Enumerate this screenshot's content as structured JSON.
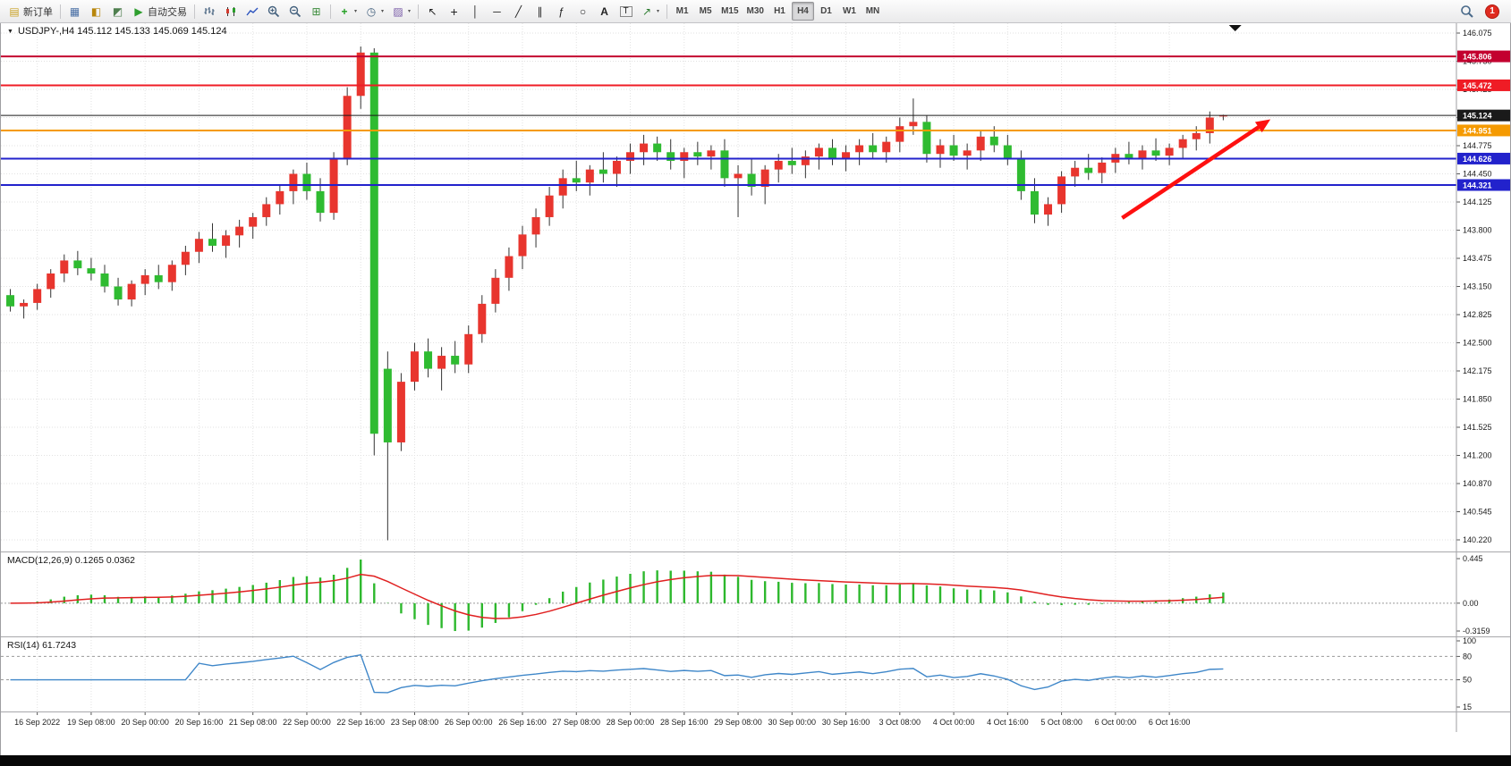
{
  "toolbar": {
    "new_order_label": "新订单",
    "autotrading_label": "自动交易",
    "timeframes": [
      "M1",
      "M5",
      "M15",
      "M30",
      "H1",
      "H4",
      "D1",
      "W1",
      "MN"
    ],
    "active_timeframe": "H4",
    "notification_count": "1"
  },
  "icons": {
    "collapse": "▼",
    "new_order": "▤",
    "charts": "▦",
    "market_watch": "◧",
    "navigator": "◩",
    "autotrading": "▶",
    "tile_windows": "⊞",
    "indicators": "+",
    "periods": "◷",
    "templates": "▨",
    "cursor": "↖",
    "crosshair": "+",
    "vertical_line": "│",
    "horizontal_line": "─",
    "trendline": "╱",
    "channel": "∥",
    "fibonacci": "ƒ",
    "shapes": "○",
    "text": "A",
    "text_label": "T",
    "arrows": "↗",
    "caret": "▾"
  },
  "panes": {
    "main_title": "USDJPY-,H4 145.112 145.133 145.069 145.124",
    "macd_label": "MACD(12,26,9) 0.1265 0.0362",
    "rsi_label": "RSI(14) 61.7243"
  },
  "hlines": [
    {
      "price": 145.806,
      "label": "145.806",
      "color": "#c3002f",
      "current": false
    },
    {
      "price": 145.472,
      "label": "145.472",
      "color": "#ef1c25",
      "current": false
    },
    {
      "price": 145.124,
      "label": "145.124",
      "color": "#1a1a1a",
      "current": true
    },
    {
      "price": 144.951,
      "label": "144.951",
      "color": "#f59a00",
      "current": false
    },
    {
      "price": 144.626,
      "label": "144.626",
      "color": "#2222cc",
      "current": false
    },
    {
      "price": 144.321,
      "label": "144.321",
      "color": "#2222cc",
      "current": false
    }
  ],
  "annotations": [
    {
      "type": "arrow",
      "from": {
        "index": 82.5,
        "price": 143.94
      },
      "to": {
        "index": 93.5,
        "price": 145.08
      },
      "color": "#fe1010",
      "width": 4.5
    }
  ],
  "chart_data": [
    {
      "type": "candlestick",
      "symbol": "USDJPY-",
      "period": "H4",
      "ohlc_display": {
        "open": "145.112",
        "high": "145.133",
        "low": "145.069",
        "close": "145.124"
      },
      "up_color": "#e8352e",
      "down_color": "#2fbb31",
      "wick_color": "#333333",
      "ylim": [
        140.22,
        146.075
      ],
      "y_tick_labels": [
        "146.075",
        "145.750",
        "145.425",
        "145.100",
        "144.775",
        "144.450",
        "144.125",
        "143.800",
        "143.475",
        "143.150",
        "142.825",
        "142.500",
        "142.175",
        "141.850",
        "141.525",
        "141.200",
        "140.870",
        "140.545",
        "140.220"
      ],
      "x_labels": [
        "16 Sep 2022",
        "19 Sep 08:00",
        "20 Sep 00:00",
        "20 Sep 16:00",
        "21 Sep 08:00",
        "22 Sep 00:00",
        "22 Sep 16:00",
        "23 Sep 08:00",
        "26 Sep 00:00",
        "26 Sep 16:00",
        "27 Sep 08:00",
        "28 Sep 00:00",
        "28 Sep 16:00",
        "29 Sep 08:00",
        "30 Sep 00:00",
        "30 Sep 16:00",
        "3 Oct 08:00",
        "4 Oct 00:00",
        "4 Oct 16:00",
        "5 Oct 08:00",
        "6 Oct 00:00",
        "6 Oct 16:00"
      ],
      "label_first": 2,
      "label_every": 4,
      "candles": [
        [
          143.05,
          143.12,
          142.86,
          142.92
        ],
        [
          142.92,
          143.0,
          142.78,
          142.96
        ],
        [
          142.96,
          143.18,
          142.88,
          143.12
        ],
        [
          143.12,
          143.35,
          143.02,
          143.3
        ],
        [
          143.3,
          143.52,
          143.2,
          143.45
        ],
        [
          143.45,
          143.56,
          143.28,
          143.36
        ],
        [
          143.36,
          143.48,
          143.22,
          143.3
        ],
        [
          143.3,
          143.4,
          143.08,
          143.15
        ],
        [
          143.15,
          143.25,
          142.93,
          143.0
        ],
        [
          143.0,
          143.22,
          142.92,
          143.18
        ],
        [
          143.18,
          143.35,
          143.05,
          143.28
        ],
        [
          143.28,
          143.4,
          143.12,
          143.2
        ],
        [
          143.2,
          143.45,
          143.1,
          143.4
        ],
        [
          143.4,
          143.62,
          143.28,
          143.55
        ],
        [
          143.55,
          143.78,
          143.42,
          143.7
        ],
        [
          143.7,
          143.88,
          143.55,
          143.62
        ],
        [
          143.62,
          143.8,
          143.48,
          143.74
        ],
        [
          143.74,
          143.92,
          143.6,
          143.84
        ],
        [
          143.84,
          144.0,
          143.7,
          143.95
        ],
        [
          143.95,
          144.18,
          143.85,
          144.1
        ],
        [
          144.1,
          144.32,
          143.98,
          144.25
        ],
        [
          144.25,
          144.5,
          144.1,
          144.45
        ],
        [
          144.45,
          144.58,
          144.15,
          144.25
        ],
        [
          144.25,
          144.4,
          143.9,
          144.0
        ],
        [
          144.0,
          144.7,
          143.92,
          144.62
        ],
        [
          144.62,
          145.45,
          144.55,
          145.35
        ],
        [
          145.35,
          145.92,
          145.2,
          145.85
        ],
        [
          145.85,
          145.9,
          141.2,
          141.45
        ],
        [
          142.2,
          142.4,
          140.22,
          141.35
        ],
        [
          141.35,
          142.15,
          141.25,
          142.05
        ],
        [
          142.05,
          142.5,
          141.95,
          142.4
        ],
        [
          142.4,
          142.55,
          142.1,
          142.2
        ],
        [
          142.2,
          142.45,
          141.95,
          142.35
        ],
        [
          142.35,
          142.52,
          142.15,
          142.25
        ],
        [
          142.25,
          142.7,
          142.15,
          142.6
        ],
        [
          142.6,
          143.05,
          142.5,
          142.95
        ],
        [
          142.95,
          143.35,
          142.85,
          143.25
        ],
        [
          143.25,
          143.6,
          143.1,
          143.5
        ],
        [
          143.5,
          143.85,
          143.35,
          143.75
        ],
        [
          143.75,
          144.05,
          143.6,
          143.95
        ],
        [
          143.95,
          144.3,
          143.85,
          144.2
        ],
        [
          144.2,
          144.5,
          144.05,
          144.4
        ],
        [
          144.4,
          144.6,
          144.25,
          144.35
        ],
        [
          144.35,
          144.55,
          144.2,
          144.5
        ],
        [
          144.5,
          144.7,
          144.35,
          144.45
        ],
        [
          144.45,
          144.65,
          144.3,
          144.6
        ],
        [
          144.6,
          144.8,
          144.45,
          144.7
        ],
        [
          144.7,
          144.9,
          144.55,
          144.8
        ],
        [
          144.8,
          144.88,
          144.6,
          144.7
        ],
        [
          144.7,
          144.85,
          144.5,
          144.6
        ],
        [
          144.6,
          144.75,
          144.4,
          144.7
        ],
        [
          144.7,
          144.82,
          144.55,
          144.65
        ],
        [
          144.65,
          144.78,
          144.5,
          144.72
        ],
        [
          144.72,
          144.85,
          144.3,
          144.4
        ],
        [
          144.4,
          144.55,
          143.95,
          144.45
        ],
        [
          144.45,
          144.62,
          144.2,
          144.3
        ],
        [
          144.3,
          144.55,
          144.1,
          144.5
        ],
        [
          144.5,
          144.68,
          144.35,
          144.6
        ],
        [
          144.6,
          144.75,
          144.45,
          144.55
        ],
        [
          144.55,
          144.72,
          144.4,
          144.65
        ],
        [
          144.65,
          144.8,
          144.5,
          144.75
        ],
        [
          144.75,
          144.85,
          144.55,
          144.62
        ],
        [
          144.62,
          144.78,
          144.48,
          144.7
        ],
        [
          144.7,
          144.85,
          144.55,
          144.78
        ],
        [
          144.78,
          144.92,
          144.62,
          144.7
        ],
        [
          144.7,
          144.88,
          144.58,
          144.82
        ],
        [
          144.82,
          145.1,
          144.7,
          145.0
        ],
        [
          145.0,
          145.32,
          144.9,
          145.05
        ],
        [
          145.05,
          145.12,
          144.58,
          144.68
        ],
        [
          144.68,
          144.85,
          144.52,
          144.78
        ],
        [
          144.78,
          144.9,
          144.6,
          144.66
        ],
        [
          144.66,
          144.8,
          144.5,
          144.72
        ],
        [
          144.72,
          144.95,
          144.6,
          144.88
        ],
        [
          144.88,
          145.0,
          144.7,
          144.78
        ],
        [
          144.78,
          144.9,
          144.55,
          144.62
        ],
        [
          144.62,
          144.72,
          144.15,
          144.25
        ],
        [
          144.25,
          144.4,
          143.88,
          143.98
        ],
        [
          143.98,
          144.18,
          143.85,
          144.1
        ],
        [
          144.1,
          144.48,
          144.0,
          144.42
        ],
        [
          144.42,
          144.6,
          144.3,
          144.52
        ],
        [
          144.52,
          144.68,
          144.38,
          144.46
        ],
        [
          144.46,
          144.64,
          144.34,
          144.58
        ],
        [
          144.58,
          144.75,
          144.46,
          144.68
        ],
        [
          144.68,
          144.82,
          144.56,
          144.62
        ],
        [
          144.62,
          144.78,
          144.5,
          144.72
        ],
        [
          144.72,
          144.86,
          144.6,
          144.66
        ],
        [
          144.66,
          144.8,
          144.55,
          144.75
        ],
        [
          144.75,
          144.9,
          144.62,
          144.85
        ],
        [
          144.85,
          145.0,
          144.72,
          144.92
        ],
        [
          144.92,
          145.17,
          144.8,
          145.1
        ],
        [
          145.112,
          145.133,
          145.069,
          145.124
        ]
      ]
    },
    {
      "type": "bar+line",
      "name": "MACD",
      "params": [
        12,
        26,
        9
      ],
      "last_main": 0.1265,
      "last_signal": 0.0362,
      "axis_labels": [
        "0.445",
        "0.00",
        "-0.3159"
      ],
      "histogram_color": "#2db82d",
      "signal_color": "#e02020",
      "derived_from_candles": true
    },
    {
      "type": "line",
      "name": "RSI",
      "period": 14,
      "last_value": 61.7243,
      "axis_labels": [
        "100",
        "80",
        "50",
        "15"
      ],
      "levels": [
        80,
        50
      ],
      "scale_min": 15,
      "scale_max": 100,
      "line_color": "#3f87c9",
      "derived_from_candles": true
    }
  ]
}
